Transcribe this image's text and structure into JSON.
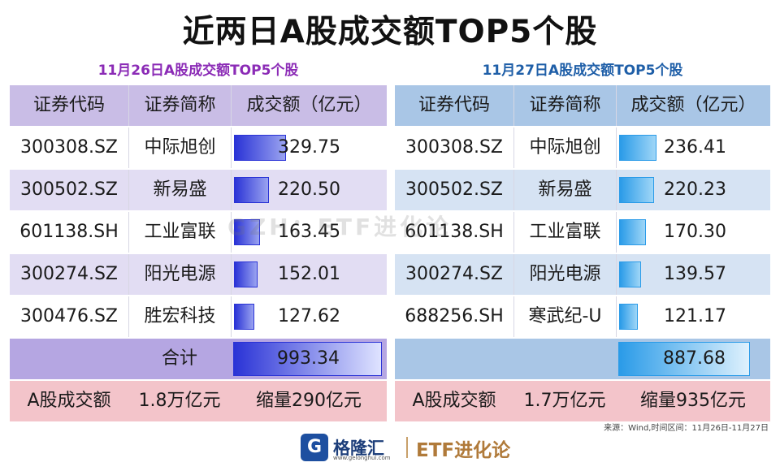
{
  "title": "近两日A股成交额TOP5个股",
  "watermark": "GZH：ETF进化论",
  "source_note": "来源：Wind,时间区间：11月26日-11月27日",
  "brand": {
    "logo_char": "G",
    "name": "格隆汇",
    "url": "www.gelonghui.com",
    "right": "ETF进化论"
  },
  "colors": {
    "left_header_bg": "#c9bde6",
    "left_alt_bg": "#e2ddf3",
    "left_total_bg": "#b5a6e2",
    "right_header_bg": "#a9c6e6",
    "right_alt_bg": "#d6e3f3",
    "right_total_bg": "#a9c6e6",
    "summary_bg": "#f3c4ca",
    "left_bar": "#2a33d6",
    "right_bar": "#2a9be8"
  },
  "chart_data": [
    {
      "type": "bar",
      "title": "11月26日A股成交额TOP5个股",
      "columns": [
        "证券代码",
        "证券简称",
        "成交额（亿元）"
      ],
      "rows": [
        {
          "code": "300308.SZ",
          "name": "中际旭创",
          "value": "329.75"
        },
        {
          "code": "300502.SZ",
          "name": "新易盛",
          "value": "220.50"
        },
        {
          "code": "601138.SH",
          "name": "工业富联",
          "value": "163.45"
        },
        {
          "code": "300274.SZ",
          "name": "阳光电源",
          "value": "152.01"
        },
        {
          "code": "300476.SZ",
          "name": "胜宏科技",
          "value": "127.62"
        }
      ],
      "categories": [
        "中际旭创",
        "新易盛",
        "工业富联",
        "阳光电源",
        "胜宏科技"
      ],
      "values": [
        329.75,
        220.5,
        163.45,
        152.01,
        127.62
      ],
      "total_label": "合计",
      "total": "993.34",
      "total_value": 993.34,
      "summary": {
        "label": "A股成交额",
        "amount": "1.8万亿元",
        "change": "缩量290亿元"
      }
    },
    {
      "type": "bar",
      "title": "11月27日A股成交额TOP5个股",
      "columns": [
        "证券代码",
        "证券简称",
        "成交额（亿元）"
      ],
      "rows": [
        {
          "code": "300308.SZ",
          "name": "中际旭创",
          "value": "236.41"
        },
        {
          "code": "300502.SZ",
          "name": "新易盛",
          "value": "220.23"
        },
        {
          "code": "601138.SH",
          "name": "工业富联",
          "value": "170.30"
        },
        {
          "code": "300274.SZ",
          "name": "阳光电源",
          "value": "139.57"
        },
        {
          "code": "688256.SH",
          "name": "寒武纪-U",
          "value": "121.17"
        }
      ],
      "categories": [
        "中际旭创",
        "新易盛",
        "工业富联",
        "阳光电源",
        "寒武纪-U"
      ],
      "values": [
        236.41,
        220.23,
        170.3,
        139.57,
        121.17
      ],
      "total_label": "",
      "total": "887.68",
      "total_value": 887.68,
      "summary": {
        "label": "A股成交额",
        "amount": "1.7万亿元",
        "change": "缩量935亿元"
      }
    }
  ]
}
